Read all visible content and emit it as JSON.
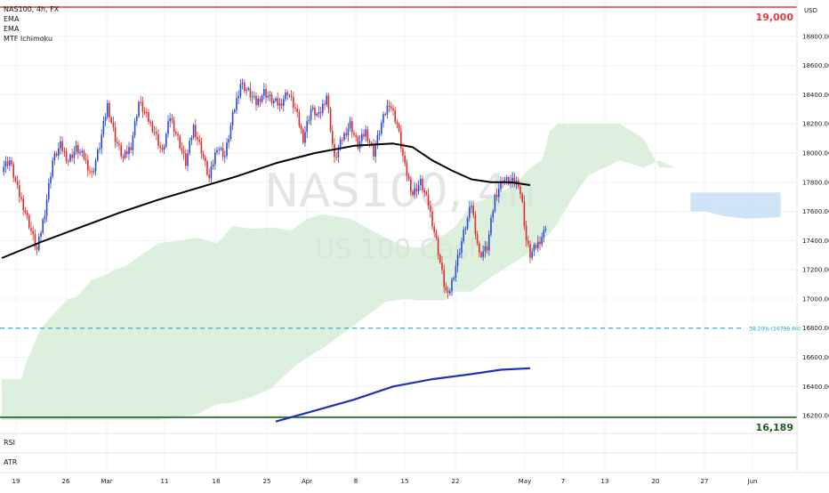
{
  "legend": {
    "symbol": "NAS100, 4h, FX",
    "ema_1": "EMA",
    "ema_2": "EMA",
    "ichimoku": "MTF Ichimoku"
  },
  "watermark": {
    "symbol": "NAS100, 4h",
    "name": "US 100 Cash"
  },
  "currency": "USD",
  "panes": {
    "rsi": "RSI",
    "atr": "ATR"
  },
  "colors": {
    "resistance": "#e53935",
    "support": "#1b5e20",
    "fib": "#26a8c9",
    "ema_fast": "#000000",
    "ema_slow": "#1a34b5",
    "cloud": "#cfe9cf",
    "cloud_bear": "#bcd8f5",
    "bull": "#2a49d6",
    "bear": "#e02a2a"
  },
  "chart_data": {
    "type": "candlestick",
    "ylim": [
      16100,
      19050
    ],
    "y_ticks": [
      "16200.00",
      "16400.00",
      "16600.00",
      "16800.00",
      "17000.00",
      "17200.00",
      "17400.00",
      "17600.00",
      "17800.00",
      "18000.00",
      "18200.00",
      "18400.00",
      "18600.00",
      "18800.00"
    ],
    "x_ticks": [
      "19",
      "26",
      "Mar",
      "11",
      "18",
      "25",
      "Apr",
      "8",
      "15",
      "22",
      "May",
      "7",
      "13",
      "20",
      "27",
      "Jun"
    ],
    "levels": [
      {
        "label": "19,000",
        "value": 19000,
        "role": "resistance"
      },
      {
        "label": "16,189",
        "value": 16189,
        "role": "support"
      },
      {
        "label": "38.20% (16799.60)",
        "value": 16799.6,
        "role": "fib"
      }
    ],
    "price_path": [
      [
        0,
        17900
      ],
      [
        4,
        17950
      ],
      [
        8,
        17750
      ],
      [
        12,
        17600
      ],
      [
        16,
        17420
      ],
      [
        18,
        17330
      ],
      [
        22,
        17600
      ],
      [
        26,
        17950
      ],
      [
        30,
        18050
      ],
      [
        34,
        17950
      ],
      [
        38,
        18030
      ],
      [
        42,
        17970
      ],
      [
        46,
        17850
      ],
      [
        50,
        18050
      ],
      [
        54,
        18330
      ],
      [
        58,
        18100
      ],
      [
        62,
        17960
      ],
      [
        66,
        18050
      ],
      [
        70,
        18350
      ],
      [
        74,
        18250
      ],
      [
        78,
        18150
      ],
      [
        82,
        18000
      ],
      [
        86,
        18250
      ],
      [
        90,
        18100
      ],
      [
        94,
        17930
      ],
      [
        98,
        18180
      ],
      [
        102,
        18020
      ],
      [
        106,
        17820
      ],
      [
        110,
        18050
      ],
      [
        114,
        17980
      ],
      [
        118,
        18250
      ],
      [
        122,
        18480
      ],
      [
        126,
        18420
      ],
      [
        130,
        18340
      ],
      [
        134,
        18420
      ],
      [
        138,
        18360
      ],
      [
        142,
        18330
      ],
      [
        146,
        18420
      ],
      [
        150,
        18300
      ],
      [
        154,
        18100
      ],
      [
        158,
        18300
      ],
      [
        162,
        18250
      ],
      [
        166,
        18400
      ],
      [
        170,
        17950
      ],
      [
        174,
        18100
      ],
      [
        178,
        18200
      ],
      [
        182,
        18050
      ],
      [
        186,
        18150
      ],
      [
        190,
        18000
      ],
      [
        194,
        18200
      ],
      [
        198,
        18350
      ],
      [
        202,
        18200
      ],
      [
        206,
        17900
      ],
      [
        210,
        17720
      ],
      [
        214,
        17800
      ],
      [
        218,
        17650
      ],
      [
        222,
        17400
      ],
      [
        226,
        17100
      ],
      [
        228,
        17010
      ],
      [
        232,
        17230
      ],
      [
        236,
        17450
      ],
      [
        240,
        17650
      ],
      [
        244,
        17300
      ],
      [
        248,
        17350
      ],
      [
        252,
        17700
      ],
      [
        256,
        17820
      ],
      [
        260,
        17800
      ],
      [
        264,
        17800
      ],
      [
        266,
        17650
      ],
      [
        268,
        17400
      ],
      [
        270,
        17300
      ],
      [
        274,
        17380
      ],
      [
        278,
        17480
      ]
    ],
    "ema_fast": [
      [
        0,
        17280
      ],
      [
        20,
        17390
      ],
      [
        40,
        17490
      ],
      [
        60,
        17590
      ],
      [
        80,
        17680
      ],
      [
        100,
        17760
      ],
      [
        120,
        17840
      ],
      [
        140,
        17930
      ],
      [
        160,
        18000
      ],
      [
        180,
        18050
      ],
      [
        200,
        18065
      ],
      [
        210,
        18040
      ],
      [
        220,
        17950
      ],
      [
        230,
        17880
      ],
      [
        240,
        17820
      ],
      [
        250,
        17800
      ],
      [
        260,
        17800
      ],
      [
        270,
        17780
      ]
    ],
    "ema_slow": [
      [
        140,
        16160
      ],
      [
        160,
        16235
      ],
      [
        180,
        16310
      ],
      [
        200,
        16400
      ],
      [
        220,
        16450
      ],
      [
        240,
        16485
      ],
      [
        255,
        16515
      ],
      [
        270,
        16525
      ]
    ],
    "cloud": [
      [
        0,
        16170,
        16450
      ],
      [
        10,
        16170,
        16450
      ],
      [
        12,
        16170,
        16550
      ],
      [
        20,
        16170,
        16800
      ],
      [
        28,
        16170,
        16920
      ],
      [
        34,
        16170,
        17000
      ],
      [
        38,
        16170,
        17010
      ],
      [
        46,
        16170,
        17130
      ],
      [
        52,
        16170,
        17160
      ],
      [
        58,
        16170,
        17200
      ],
      [
        64,
        16170,
        17230
      ],
      [
        70,
        16170,
        17290
      ],
      [
        80,
        16170,
        17380
      ],
      [
        90,
        16190,
        17400
      ],
      [
        100,
        16210,
        17420
      ],
      [
        110,
        16280,
        17380
      ],
      [
        118,
        16290,
        17500
      ],
      [
        128,
        16330,
        17480
      ],
      [
        138,
        16390,
        17490
      ],
      [
        148,
        16520,
        17470
      ],
      [
        156,
        16600,
        17550
      ],
      [
        164,
        16660,
        17580
      ],
      [
        178,
        16800,
        17550
      ],
      [
        196,
        16980,
        17420
      ],
      [
        206,
        17000,
        17360
      ],
      [
        214,
        16990,
        17350
      ],
      [
        220,
        16990,
        17400
      ],
      [
        226,
        16990,
        17440
      ],
      [
        232,
        17050,
        17500
      ],
      [
        240,
        17050,
        17650
      ],
      [
        250,
        17150,
        17700
      ],
      [
        262,
        17250,
        17780
      ],
      [
        270,
        17320,
        17900
      ],
      [
        276,
        17400,
        17950
      ],
      [
        280,
        17450,
        18150
      ],
      [
        284,
        17520,
        18200
      ],
      [
        292,
        17700,
        18200
      ],
      [
        300,
        17850,
        18200
      ],
      [
        316,
        17950,
        18200
      ],
      [
        328,
        17900,
        18100
      ],
      [
        336,
        17950,
        17900
      ],
      [
        344,
        17900,
        17900
      ]
    ],
    "cloud_bear": [
      [
        352,
        17600,
        17730
      ],
      [
        360,
        17600,
        17730
      ],
      [
        368,
        17570,
        17730
      ],
      [
        380,
        17550,
        17730
      ],
      [
        398,
        17560,
        17730
      ]
    ]
  }
}
